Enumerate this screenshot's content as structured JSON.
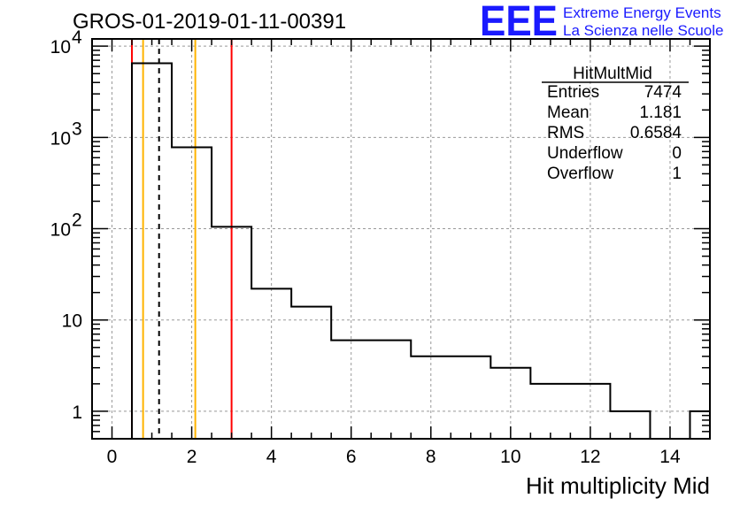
{
  "chart_data": {
    "type": "histogram",
    "title": "GROS-01-2019-01-11-00391",
    "xlabel": "Hit multiplicity Mid",
    "ylabel": "",
    "xlim": [
      -0.5,
      15.0
    ],
    "ylim": [
      0.5,
      12000
    ],
    "yscale": "log",
    "grid": true,
    "x_ticks": [
      0,
      2,
      4,
      6,
      8,
      10,
      12,
      14
    ],
    "x_tick_labels": [
      "0",
      "2",
      "4",
      "6",
      "8",
      "10",
      "12",
      "14"
    ],
    "y_ticks": [
      1,
      10,
      100,
      1000,
      10000
    ],
    "y_tick_labels": [
      {
        "base": "1",
        "exp": ""
      },
      {
        "base": "10",
        "exp": ""
      },
      {
        "base": "10",
        "exp": "2"
      },
      {
        "base": "10",
        "exp": "3"
      },
      {
        "base": "10",
        "exp": "4"
      }
    ],
    "bins": [
      {
        "lo": 0.5,
        "hi": 1.5,
        "count": 6500
      },
      {
        "lo": 1.5,
        "hi": 2.5,
        "count": 780
      },
      {
        "lo": 2.5,
        "hi": 3.5,
        "count": 105
      },
      {
        "lo": 3.5,
        "hi": 4.5,
        "count": 22
      },
      {
        "lo": 4.5,
        "hi": 5.5,
        "count": 14
      },
      {
        "lo": 5.5,
        "hi": 6.5,
        "count": 6
      },
      {
        "lo": 6.5,
        "hi": 7.5,
        "count": 6
      },
      {
        "lo": 7.5,
        "hi": 8.5,
        "count": 4
      },
      {
        "lo": 8.5,
        "hi": 9.5,
        "count": 4
      },
      {
        "lo": 9.5,
        "hi": 10.5,
        "count": 3
      },
      {
        "lo": 10.5,
        "hi": 11.5,
        "count": 2
      },
      {
        "lo": 11.5,
        "hi": 12.5,
        "count": 2
      },
      {
        "lo": 12.5,
        "hi": 13.5,
        "count": 1
      },
      {
        "lo": 13.5,
        "hi": 14.5,
        "count": 0
      },
      {
        "lo": 14.5,
        "hi": 15.5,
        "count": 1
      }
    ],
    "vertical_lines": [
      {
        "x": 0.5,
        "color": "#ff0000",
        "style": "solid"
      },
      {
        "x": 0.78,
        "color": "#ffb300",
        "style": "solid"
      },
      {
        "x": 1.181,
        "color": "#000000",
        "style": "dashed"
      },
      {
        "x": 2.09,
        "color": "#ffb300",
        "style": "solid"
      },
      {
        "x": 3.0,
        "color": "#ff0000",
        "style": "solid"
      }
    ],
    "stats_box": {
      "name": "HitMultMid",
      "rows": [
        {
          "label": "Entries",
          "value": "7474"
        },
        {
          "label": "Mean",
          "value": "1.181"
        },
        {
          "label": "RMS",
          "value": "0.6584"
        },
        {
          "label": "Underflow",
          "value": "0"
        },
        {
          "label": "Overflow",
          "value": "1"
        }
      ]
    }
  },
  "logo": {
    "big": "EEE",
    "line1": "Extreme Energy Events",
    "line2": "La Scienza nelle Scuole"
  }
}
